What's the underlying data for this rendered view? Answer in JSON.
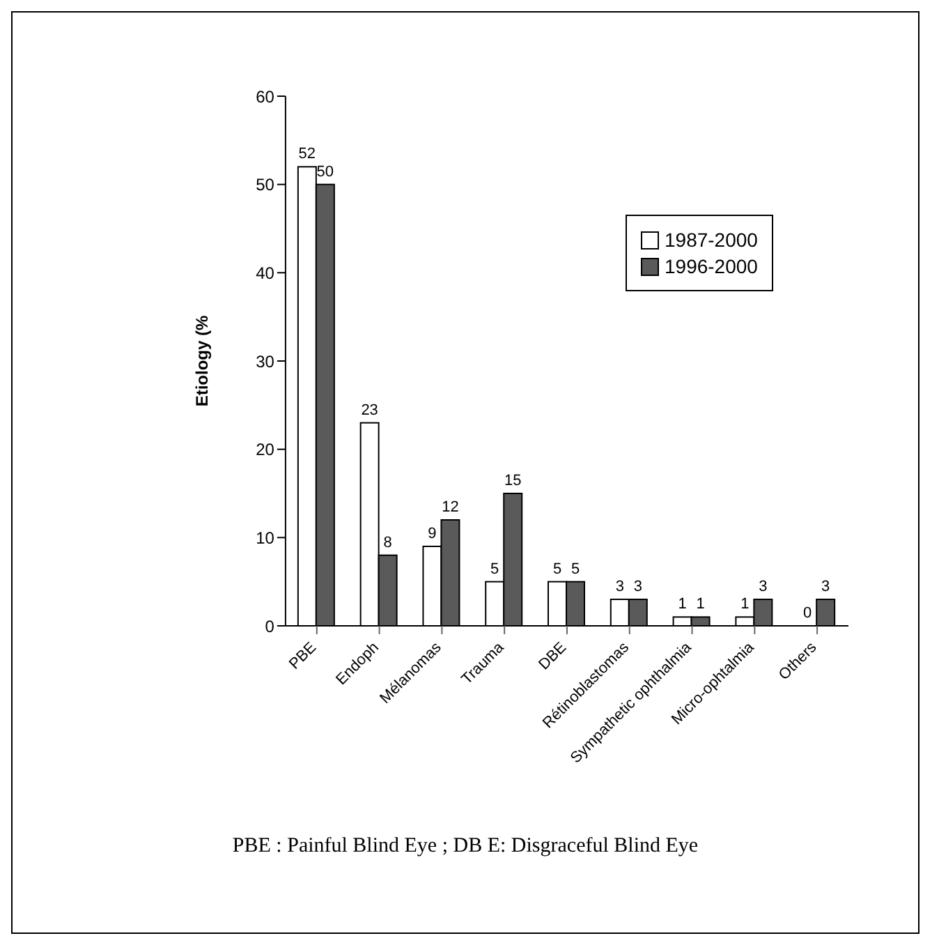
{
  "chart_data": {
    "type": "bar",
    "ylabel": "Etiology (%",
    "categories": [
      "PBE",
      "Endoph",
      "Mélanomas",
      "Trauma",
      "DBE",
      "Rétinoblastomas",
      "Sympathetic ophthalmia",
      "Micro-ophtalmia",
      "Others"
    ],
    "series": [
      {
        "name": "1987-2000",
        "color": "#ffffff",
        "values": [
          52,
          23,
          9,
          5,
          5,
          3,
          1,
          1,
          0
        ]
      },
      {
        "name": "1996-2000",
        "color": "#5a5a5a",
        "values": [
          50,
          8,
          12,
          15,
          5,
          3,
          1,
          3,
          3
        ]
      }
    ],
    "ylim": [
      0,
      60
    ],
    "yticks": [
      0,
      10,
      20,
      30,
      40,
      50,
      60
    ],
    "grid": false,
    "legend": "top right",
    "data_labels": true,
    "annotations": [
      "PBE : Painful Blind Eye ; DB E: Disgraceful Blind Eye"
    ]
  }
}
